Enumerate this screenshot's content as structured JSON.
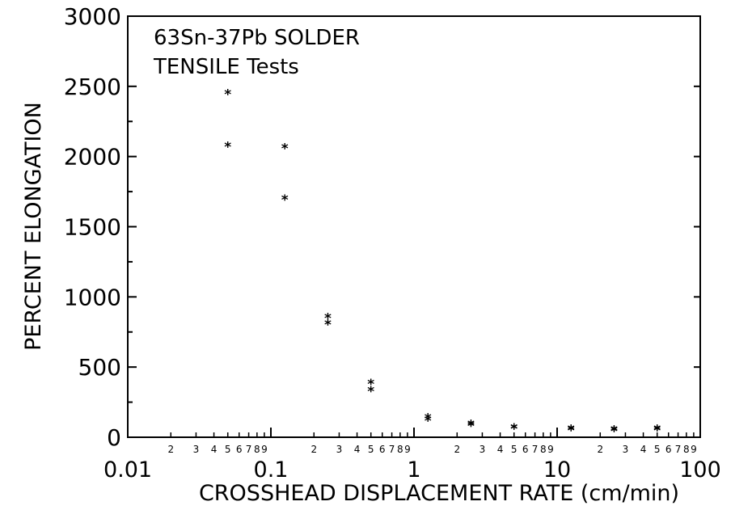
{
  "chart_data": {
    "type": "scatter",
    "title": "",
    "annotation": [
      "63Sn-37Pb SOLDER",
      "TENSILE Tests"
    ],
    "xlabel": "CROSSHEAD DISPLACEMENT RATE (cm/min)",
    "ylabel": "PERCENT ELONGATION",
    "xscale": "log",
    "xlim": [
      0.01,
      100
    ],
    "ylim": [
      0,
      3000
    ],
    "grid": false,
    "legend": "none",
    "x_ticks": [
      "0.01",
      "0.1",
      "1",
      "10",
      "100"
    ],
    "y_ticks": [
      "0",
      "500",
      "1000",
      "1500",
      "2000",
      "2500",
      "3000"
    ],
    "minor_tick_labels": [
      "2",
      "3",
      "4",
      "5",
      "6",
      "7",
      "8",
      "9"
    ],
    "marker": "*",
    "points": [
      {
        "x": 0.05,
        "y": 2450
      },
      {
        "x": 0.05,
        "y": 2075
      },
      {
        "x": 0.125,
        "y": 2065
      },
      {
        "x": 0.125,
        "y": 1700
      },
      {
        "x": 0.25,
        "y": 855
      },
      {
        "x": 0.25,
        "y": 810
      },
      {
        "x": 0.5,
        "y": 385
      },
      {
        "x": 0.5,
        "y": 335
      },
      {
        "x": 1.25,
        "y": 140
      },
      {
        "x": 1.25,
        "y": 125
      },
      {
        "x": 2.5,
        "y": 95
      },
      {
        "x": 2.5,
        "y": 85
      },
      {
        "x": 5,
        "y": 70
      },
      {
        "x": 5,
        "y": 65
      },
      {
        "x": 12.5,
        "y": 60
      },
      {
        "x": 12.5,
        "y": 55
      },
      {
        "x": 25,
        "y": 55
      },
      {
        "x": 25,
        "y": 50
      },
      {
        "x": 50,
        "y": 60
      },
      {
        "x": 50,
        "y": 55
      }
    ]
  }
}
